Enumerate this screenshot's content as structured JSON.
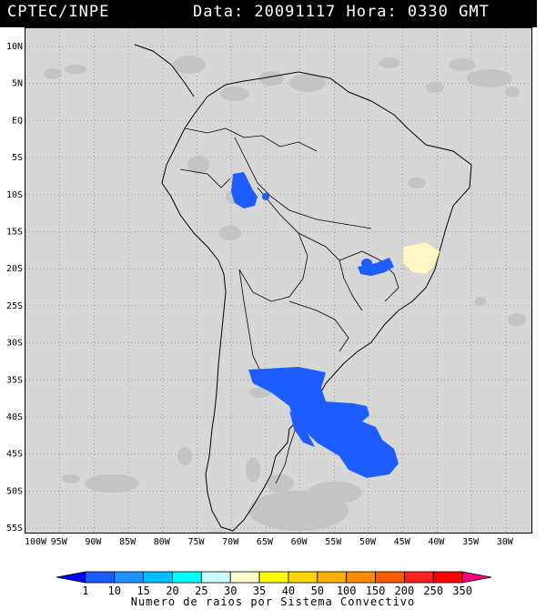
{
  "header": {
    "left": "CPTEC/INPE",
    "right": "Data: 20091117 Hora: 0330 GMT"
  },
  "lat_ticks": [
    "10N",
    "5N",
    "EQ",
    "5S",
    "10S",
    "15S",
    "20S",
    "25S",
    "30S",
    "35S",
    "40S",
    "45S",
    "50S",
    "55S"
  ],
  "lon_ticks": [
    "100W",
    "95W",
    "90W",
    "85W",
    "80W",
    "75W",
    "70W",
    "65W",
    "60W",
    "55W",
    "50W",
    "45W",
    "40W",
    "35W",
    "30W"
  ],
  "colorbar": {
    "labels": [
      "1",
      "10",
      "15",
      "20",
      "25",
      "30",
      "35",
      "40",
      "50",
      "100",
      "150",
      "200",
      "250",
      "350"
    ],
    "colors": [
      "#0000ff",
      "#1a5cff",
      "#1e90ff",
      "#00bfff",
      "#00ffff",
      "#ccffff",
      "#ffffcc",
      "#ffff00",
      "#ffd700",
      "#ffb000",
      "#ff8c00",
      "#ff5a00",
      "#ff2020",
      "#ff0000",
      "#ff007f"
    ],
    "caption": "Numero de raios por Sistema Convectivo"
  },
  "colors": {
    "cloud": "#c6c6c6",
    "convective_blue": "#1d5cff",
    "convective_yellow": "#fff7c6",
    "background": "#d7d7d7"
  }
}
